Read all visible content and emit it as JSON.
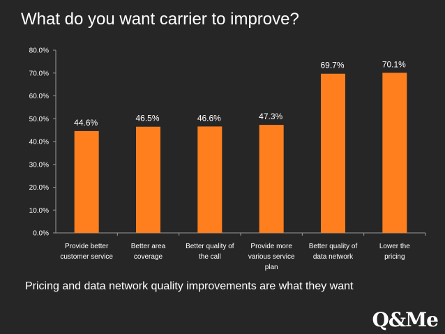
{
  "title": "What do you want carrier to improve?",
  "caption": "Pricing and data network quality improvements are what they want",
  "logo": "Q&Me",
  "colors": {
    "bar": "#ff7f1f",
    "background": "#262626",
    "text": "#ffffff"
  },
  "chart_data": {
    "type": "bar",
    "title": "What do you want carrier to improve?",
    "categories": [
      [
        "Provide better",
        "customer service"
      ],
      [
        "Better area",
        "coverage"
      ],
      [
        "Better quality of",
        "the call"
      ],
      [
        "Provide more",
        "various service",
        "plan"
      ],
      [
        "Better quality of",
        "data network"
      ],
      [
        "Lower the",
        "pricing"
      ]
    ],
    "values": [
      44.6,
      46.5,
      46.6,
      47.3,
      69.7,
      70.1
    ],
    "value_labels": [
      "44.6%",
      "46.5%",
      "46.6%",
      "47.3%",
      "69.7%",
      "70.1%"
    ],
    "yticks": [
      "0.0%",
      "10.0%",
      "20.0%",
      "30.0%",
      "40.0%",
      "50.0%",
      "60.0%",
      "70.0%",
      "80.0%"
    ],
    "ylim": [
      0,
      80
    ],
    "xlabel": "",
    "ylabel": "",
    "grid": false
  }
}
